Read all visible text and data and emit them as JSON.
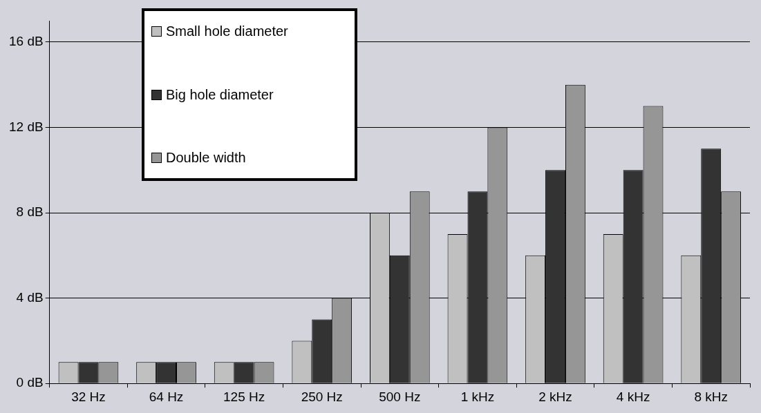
{
  "chart_data": {
    "type": "bar",
    "categories": [
      "32 Hz",
      "64 Hz",
      "125 Hz",
      "250 Hz",
      "500 Hz",
      "1 kHz",
      "2 kHz",
      "4 kHz",
      "8 kHz"
    ],
    "series": [
      {
        "name": "Small hole diameter",
        "color": "#c0c0c0",
        "values": [
          1,
          1,
          1,
          2,
          8,
          7,
          6,
          7,
          6
        ]
      },
      {
        "name": "Big hole diameter",
        "color": "#333333",
        "values": [
          1,
          1,
          1,
          3,
          6,
          9,
          10,
          10,
          11
        ]
      },
      {
        "name": "Double width",
        "color": "#969696",
        "values": [
          1,
          1,
          1,
          4,
          9,
          12,
          14,
          13,
          9
        ]
      }
    ],
    "ylim": [
      0,
      17
    ],
    "yticks": [
      {
        "value": 0,
        "label": "0 dB"
      },
      {
        "value": 4,
        "label": "4 dB"
      },
      {
        "value": 8,
        "label": "8 dB"
      },
      {
        "value": 12,
        "label": "12 dB"
      },
      {
        "value": 16,
        "label": "16 dB"
      }
    ],
    "grid": "y",
    "legend": "top left"
  }
}
